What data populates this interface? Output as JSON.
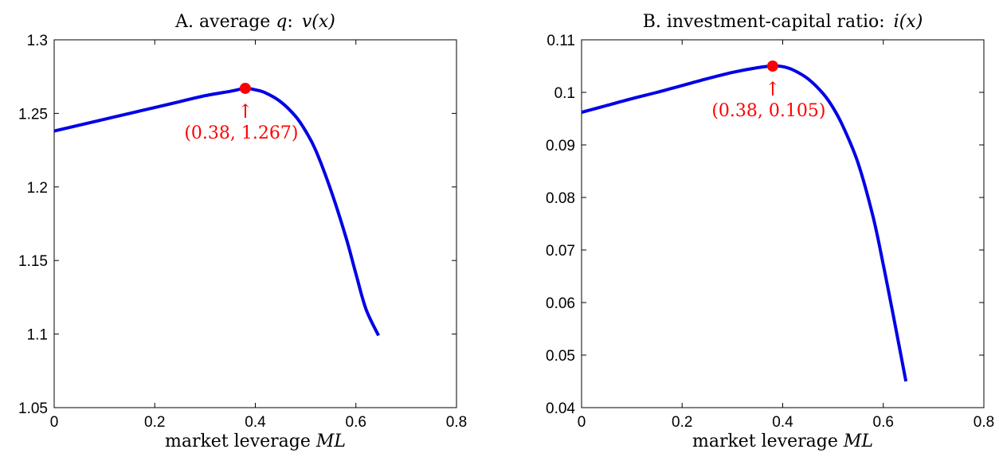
{
  "chart_data": [
    {
      "type": "line",
      "title_prefix": "A. average ",
      "title_italic": "q",
      "title_suffix": ": ",
      "title_math": "v(x)",
      "xlabel_text": "market leverage ",
      "xlabel_math": "ML",
      "xlim": [
        0,
        0.8
      ],
      "ylim": [
        1.05,
        1.3
      ],
      "xticks": [
        "0",
        "0.2",
        "0.4",
        "0.6",
        "0.8"
      ],
      "yticks": [
        "1.05",
        "1.1",
        "1.15",
        "1.2",
        "1.25",
        "1.3"
      ],
      "grid": false,
      "line_color": "#0000e6",
      "marker_color": "#ff0000",
      "series": [
        {
          "x": [
            0,
            0.05,
            0.1,
            0.15,
            0.2,
            0.25,
            0.3,
            0.35,
            0.38,
            0.4,
            0.42,
            0.45,
            0.48,
            0.5,
            0.52,
            0.55,
            0.58,
            0.6,
            0.62,
            0.645
          ],
          "values": [
            1.238,
            1.242,
            1.246,
            1.25,
            1.254,
            1.258,
            1.262,
            1.265,
            1.267,
            1.266,
            1.264,
            1.258,
            1.248,
            1.238,
            1.225,
            1.198,
            1.166,
            1.141,
            1.117,
            1.099
          ]
        }
      ],
      "peak": {
        "x": 0.38,
        "y": 1.267,
        "label": "(0.38, 1.267)",
        "arrow": "↑"
      }
    },
    {
      "type": "line",
      "title_prefix": "B. investment-capital ratio: ",
      "title_italic": "",
      "title_suffix": "",
      "title_math": "i(x)",
      "xlabel_text": "market leverage ",
      "xlabel_math": "ML",
      "xlim": [
        0,
        0.8
      ],
      "ylim": [
        0.04,
        0.11
      ],
      "xticks": [
        "0",
        "0.2",
        "0.4",
        "0.6",
        "0.8"
      ],
      "yticks": [
        "0.04",
        "0.05",
        "0.06",
        "0.07",
        "0.08",
        "0.09",
        "0.1",
        "0.11"
      ],
      "grid": false,
      "line_color": "#0000e6",
      "marker_color": "#ff0000",
      "series": [
        {
          "x": [
            0,
            0.05,
            0.1,
            0.15,
            0.2,
            0.25,
            0.3,
            0.35,
            0.38,
            0.4,
            0.42,
            0.45,
            0.48,
            0.5,
            0.52,
            0.55,
            0.58,
            0.6,
            0.62,
            0.645
          ],
          "values": [
            0.0962,
            0.0975,
            0.0988,
            0.1,
            0.1013,
            0.1026,
            0.1038,
            0.1047,
            0.105,
            0.1049,
            0.1043,
            0.1026,
            0.0998,
            0.0971,
            0.0935,
            0.0865,
            0.0762,
            0.0672,
            0.0575,
            0.045
          ]
        }
      ],
      "peak": {
        "x": 0.38,
        "y": 0.105,
        "label": "(0.38, 0.105)",
        "arrow": "↑"
      }
    }
  ]
}
